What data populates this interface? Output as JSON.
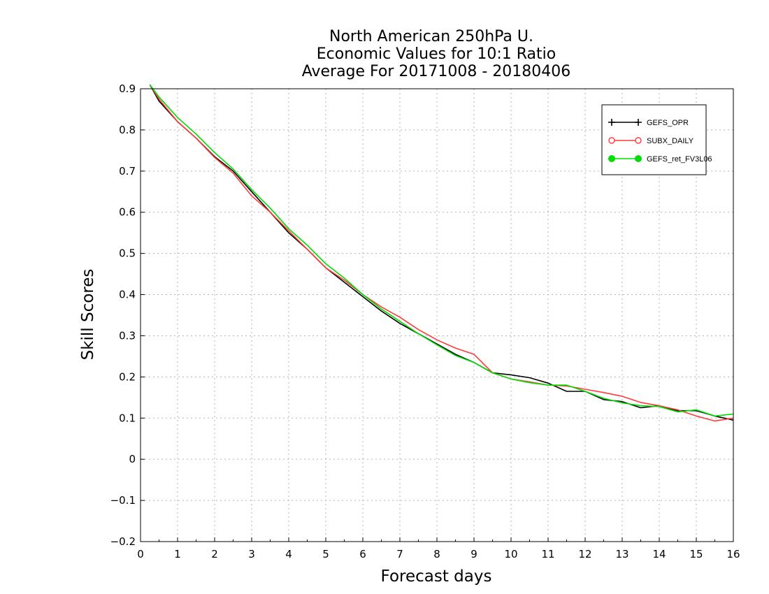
{
  "chart_data": {
    "type": "line",
    "title_lines": [
      "North American 250hPa U.",
      "Economic Values for 10:1 Ratio",
      "Average For 20171008 - 20180406"
    ],
    "xlabel": "Forecast days",
    "ylabel": "Skill Scores",
    "xlim": [
      0,
      16
    ],
    "ylim": [
      -0.2,
      0.9
    ],
    "x_ticks": [
      0,
      1,
      2,
      3,
      4,
      5,
      6,
      7,
      8,
      9,
      10,
      11,
      12,
      13,
      14,
      15,
      16
    ],
    "y_ticks": [
      -0.2,
      -0.1,
      0,
      0.1,
      0.2,
      0.3,
      0.4,
      0.5,
      0.6,
      0.7,
      0.8,
      0.9
    ],
    "y_tick_labels": [
      "−0.2",
      "−0.1",
      "0",
      "0.1",
      "0.2",
      "0.3",
      "0.4",
      "0.5",
      "0.6",
      "0.7",
      "0.8",
      "0.9"
    ],
    "grid": true,
    "legend_position": "top-right",
    "x": [
      0.25,
      0.5,
      1,
      1.5,
      2,
      2.5,
      3,
      3.5,
      4,
      4.5,
      5,
      5.5,
      6,
      6.5,
      7,
      7.5,
      8,
      8.5,
      9,
      9.5,
      10,
      10.5,
      11,
      11.5,
      12,
      12.5,
      13,
      13.5,
      14,
      14.5,
      15,
      15.5,
      16
    ],
    "series": [
      {
        "name": "GEFS_OPR",
        "color": "#000000",
        "marker": "plus",
        "values": [
          0.91,
          0.87,
          0.82,
          0.78,
          0.735,
          0.7,
          0.65,
          0.6,
          0.55,
          0.51,
          0.465,
          0.43,
          0.395,
          0.36,
          0.33,
          0.305,
          0.28,
          0.255,
          0.235,
          0.21,
          0.205,
          0.198,
          0.185,
          0.165,
          0.165,
          0.145,
          0.14,
          0.125,
          0.13,
          0.118,
          0.118,
          0.105,
          0.095
        ]
      },
      {
        "name": "SUBX_DAILY",
        "color": "#ff3b3b",
        "marker": "open-circle",
        "values": [
          0.91,
          0.875,
          0.82,
          0.78,
          0.733,
          0.695,
          0.64,
          0.6,
          0.555,
          0.51,
          0.465,
          0.435,
          0.4,
          0.37,
          0.345,
          0.315,
          0.29,
          0.27,
          0.255,
          0.21,
          0.195,
          0.188,
          0.18,
          0.178,
          0.17,
          0.162,
          0.153,
          0.138,
          0.13,
          0.12,
          0.105,
          0.093,
          0.1
        ]
      },
      {
        "name": "GEFS_ret_FV3L06",
        "color": "#00dd00",
        "marker": "filled-circle",
        "values": [
          0.91,
          0.88,
          0.83,
          0.79,
          0.745,
          0.705,
          0.655,
          0.61,
          0.56,
          0.52,
          0.475,
          0.44,
          0.4,
          0.365,
          0.335,
          0.305,
          0.278,
          0.252,
          0.235,
          0.21,
          0.195,
          0.186,
          0.18,
          0.18,
          0.165,
          0.148,
          0.137,
          0.13,
          0.128,
          0.115,
          0.12,
          0.105,
          0.11
        ]
      }
    ]
  }
}
